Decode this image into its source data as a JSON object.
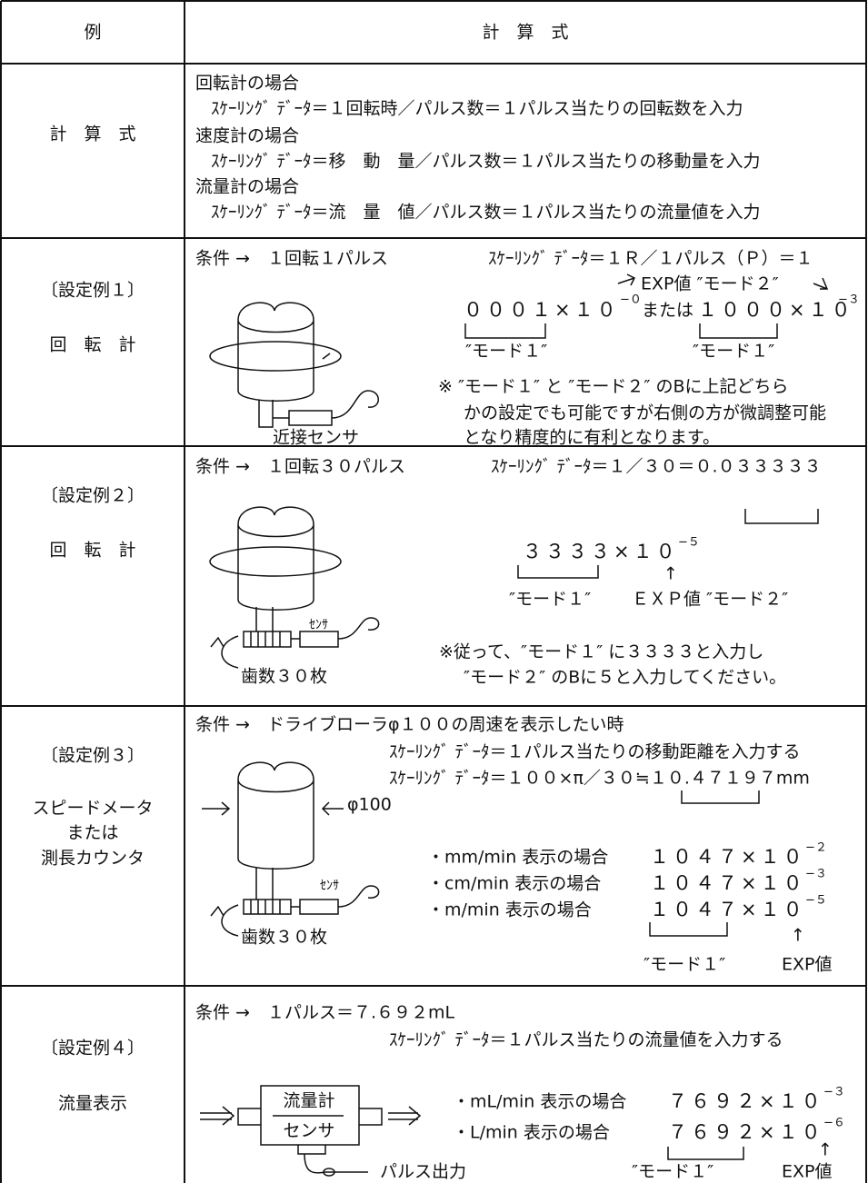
{
  "table": {
    "header": {
      "example": "例",
      "formula": "計　算　式"
    },
    "rows": [
      {
        "label": [
          "計　算　式"
        ],
        "texts": [
          "回転計の場合",
          "ｽｹｰﾘﾝｸﾞ ﾃﾞｰﾀ＝１回転時／パルス数＝１パルス当たりの回転数を入力",
          "速度計の場合",
          "ｽｹｰﾘﾝｸﾞ ﾃﾞｰﾀ＝移　動　量／パルス数＝１パルス当たりの移動量を入力",
          "流量計の場合",
          "ｽｹｰﾘﾝｸﾞ ﾃﾞｰﾀ＝流　量　値／パルス数＝１パルス当たりの流量値を入力"
        ]
      },
      {
        "label": [
          "〔設定例１〕",
          "回　転　計"
        ],
        "texts": [
          "条件 →　１回転１パルス",
          "ｽｹｰﾘﾝｸﾞ ﾃﾞｰﾀ＝１Ｒ／１パルス（Ｐ）＝１",
          "EXP値 ″モード２″",
          "０００１×１０",
          "−０",
          "または",
          "１０００×１０",
          "−３",
          "″モード１″",
          "″モード１″",
          "※ ″モード１″ と ″モード２″ のBに上記どちら",
          "かの設定でも可能ですが右側の方が微調整可能",
          "となり精度的に有利となります。",
          "近接センサ"
        ]
      },
      {
        "label": [
          "〔設定例２〕",
          "回　転　計"
        ],
        "texts": [
          "条件 →　１回転３０パルス",
          "ｽｹｰﾘﾝｸﾞ ﾃﾞｰﾀ＝１／３０＝０.０３３３３３",
          "３３３３×１０",
          "−５",
          "↑",
          "″モード１″",
          "ＥＸＰ値 ″モード２″",
          "※従って、″モード１″ に３３３３と入力し",
          "″モード２″ のBに５と入力してください。",
          "ｾﾝｻ",
          "歯数３０枚"
        ]
      },
      {
        "label": [
          "〔設定例３〕",
          "スピードメータ",
          "または",
          "測長カウンタ"
        ],
        "texts": [
          "条件 →　ドライブローラφ１００の周速を表示したい時",
          "ｽｹｰﾘﾝｸﾞ ﾃﾞｰﾀ＝１パルス当たりの移動距離を入力する",
          "ｽｹｰﾘﾝｸﾞ ﾃﾞｰﾀ＝１００×π／３０≒１０.４７１９７mm",
          "φ100",
          "・mm/min 表示の場合",
          "１０４７×１０",
          "−２",
          "・cm/min 表示の場合",
          "１０４７×１０",
          "−３",
          "・m/min 表示の場合",
          "１０４７×１０",
          "−５",
          "↑",
          "″モード１″",
          "EXP値",
          "ｾﾝｻ",
          "歯数３０枚"
        ]
      },
      {
        "label": [
          "〔設定例４〕",
          "流量表示"
        ],
        "texts": [
          "条件 →　１パルス＝７.６９２mL",
          "ｽｹｰﾘﾝｸﾞ ﾃﾞｰﾀ＝１パルス当たりの流量値を入力する",
          "流量計",
          "センサ",
          "・mL/min 表示の場合",
          "７６９２×１０",
          "−３",
          "・L/min 表示の場合",
          "７６９２×１０",
          "−６",
          "↑",
          "パルス出力",
          "″モード１″",
          "EXP値"
        ]
      }
    ]
  }
}
